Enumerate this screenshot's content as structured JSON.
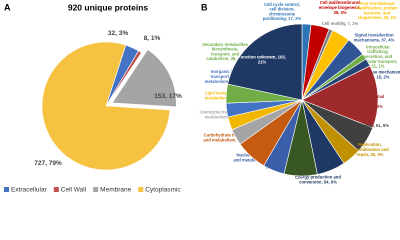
{
  "chart_data": [
    {
      "type": "pie",
      "panel_label": "A",
      "title": "920 unique proteins",
      "categories": [
        "Extracellular",
        "Cell Wall",
        "Membrane",
        "Cytoplasmic"
      ],
      "values": [
        32,
        8,
        153,
        727
      ],
      "value_labels": [
        "32, 3%",
        "8, 1%",
        "153, 17%",
        "727, 79%"
      ],
      "colors": [
        "#4472c4",
        "#c0504d",
        "#a5a5a5",
        "#f5c242"
      ],
      "exploded": [
        2
      ],
      "legend": "bottom"
    },
    {
      "type": "pie",
      "panel_label": "B",
      "values": [
        17,
        35,
        7,
        35,
        37,
        11,
        15,
        119,
        51,
        36,
        54,
        63,
        41,
        60,
        31,
        25,
        26,
        36,
        193
      ],
      "value_labels": [
        "Cell cycle control, cell division, chromosome partitioning, 17, 2%",
        "Cell wall/membrane/ envelope biogenesis, 35, 4%",
        "Cell motility, 7, 1%",
        "Post-translational modification, protein turnover, and chaperones, 35, 4%",
        "Signal transduction mechanisms, 37, 4%",
        "Intracellular trafficking, secretion, and vesicular transport, 11, 1%",
        "Defense mechanisms, 15, 2%",
        "Translation, ribosomal structure and biogenesis, 119, 13%",
        "Transcription, 51, 6%",
        "Replication, recombination and repair, 36, 4%",
        "Energy production and conversion, 54, 6%",
        "Amino acid transport and metabolism, 63, 7%",
        "Nucleotide transport and metabolism, 41, 4%",
        "Carbohydrate transport and metabolism, 60, 7%",
        "Coenzyme transport and metabolism, 31, 3%",
        "Lipid transport and metabolism, 25, 3%",
        "Inorganic ion transport and metabolism, 26, 3%",
        "Secondary metabolites biosynthesis, transport, and catabolism, 36, 4%",
        "Function unknown, 193, 21%"
      ],
      "colors": [
        "#2e75b6",
        "#c00000",
        "#7f7f7f",
        "#ffc000",
        "#2f5597",
        "#70ad47",
        "#264478",
        "#9e2a2b",
        "#404040",
        "#bf9000",
        "#1f3864",
        "#385723",
        "#3a5ea8",
        "#c55a11",
        "#a5a5a5",
        "#f2b800",
        "#4472c4",
        "#70ad47",
        "#1f3864"
      ]
    }
  ]
}
